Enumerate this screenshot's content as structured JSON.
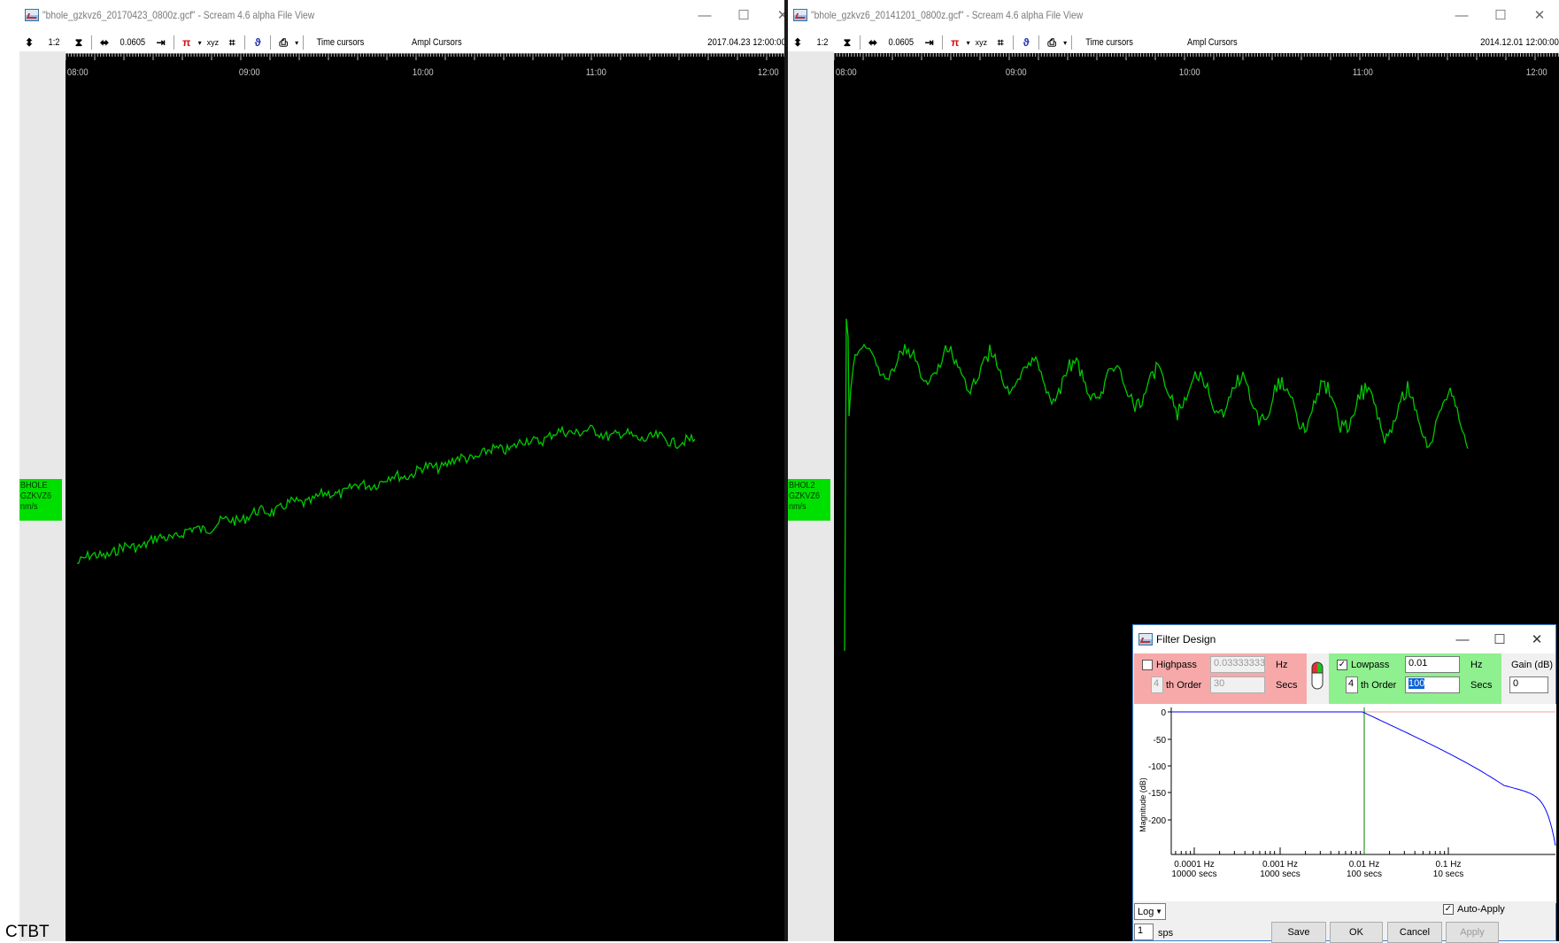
{
  "left_window": {
    "title": "\"bhole_gzkvz6_20170423_0800z.gcf\" - Scream 4.6 alpha File View",
    "toolbar": {
      "ratio": "1:2",
      "span": "0.0605",
      "time_cursors": "Time cursors",
      "ampl_cursors": "Ampl Cursors",
      "datetime": "2017.04.23 12:00:00"
    },
    "time_labels": [
      "08:00",
      "09:00",
      "10:00",
      "11:00",
      "12:00"
    ],
    "channel": {
      "line1": "BHOLE",
      "line2": "GZKVZ6",
      "unit": "nm/s"
    }
  },
  "right_window": {
    "title": "\"bhole_gzkvz6_20141201_0800z.gcf\" - Scream 4.6 alpha File View",
    "toolbar": {
      "ratio": "1:2",
      "span": "0.0605",
      "time_cursors": "Time cursors",
      "ampl_cursors": "Ampl Cursors",
      "datetime": "2014.12.01 12:00:00"
    },
    "time_labels": [
      "08:00",
      "09:00",
      "10:00",
      "11:00",
      "12:00"
    ],
    "channel": {
      "line1": "BHOL2",
      "line2": "GZKVZ6",
      "unit": "nm/s"
    }
  },
  "window_controls": {
    "minimize": "—",
    "maximize": "☐",
    "close": "✕"
  },
  "filter_dialog": {
    "title": "Filter Design",
    "highpass": {
      "label": "Highpass",
      "checked": false,
      "hz_value": "0.03333333",
      "hz_unit": "Hz",
      "order": "4",
      "order_label": "th Order",
      "secs_value": "30",
      "secs_unit": "Secs"
    },
    "lowpass": {
      "label": "Lowpass",
      "checked": true,
      "hz_value": "0.01",
      "hz_unit": "Hz",
      "order": "4",
      "order_label": "th Order",
      "secs_value": "100",
      "secs_unit": "Secs"
    },
    "gain": {
      "label": "Gain (dB)",
      "value": "0"
    },
    "graph": {
      "ylabel": "Magnitude (dB)",
      "yticks": [
        "0",
        "-50",
        "-100",
        "-150",
        "-200"
      ],
      "xticks": [
        {
          "hz": "0.0001 Hz",
          "secs": "10000 secs"
        },
        {
          "hz": "0.001 Hz",
          "secs": "1000 secs"
        },
        {
          "hz": "0.01 Hz",
          "secs": "100 secs"
        },
        {
          "hz": "0.1 Hz",
          "secs": "10 secs"
        }
      ]
    },
    "scale": "Log",
    "sps_value": "1",
    "sps_label": "sps",
    "auto_apply": "Auto-Apply",
    "auto_apply_checked": true,
    "buttons": {
      "save": "Save",
      "ok": "OK",
      "cancel": "Cancel",
      "apply": "Apply"
    }
  },
  "footer_text": "CTBT",
  "colors": {
    "trace": "#00c800",
    "label_bg": "#00e000",
    "highpass_bg": "#f7a9a9",
    "lowpass_bg": "#8ef08e",
    "response": "#0000ff"
  }
}
